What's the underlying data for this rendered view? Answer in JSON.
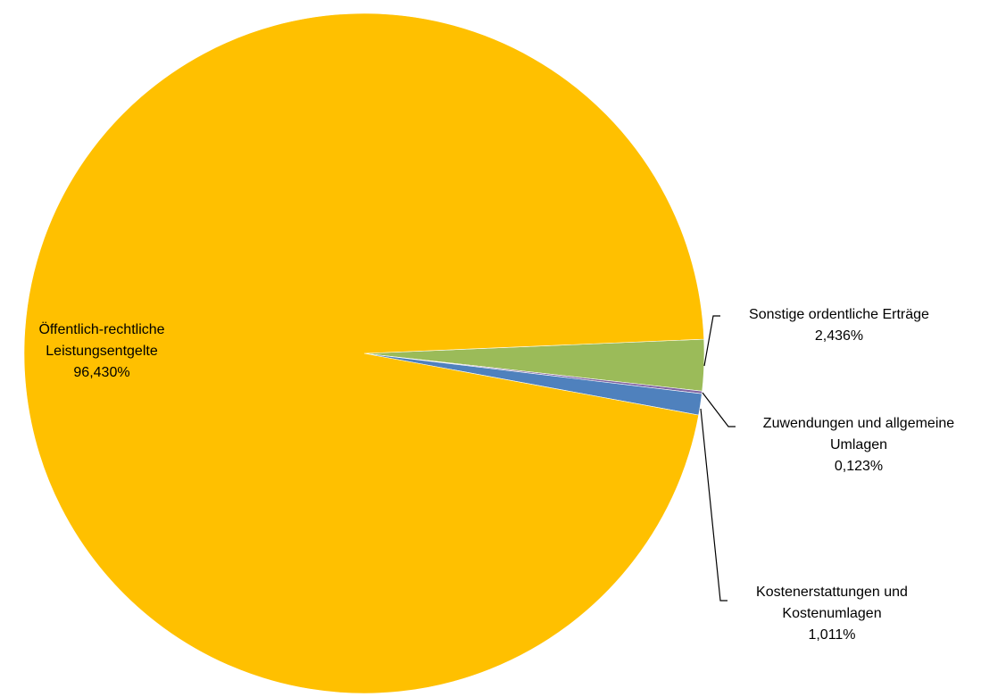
{
  "chart_data": {
    "type": "pie",
    "title": "",
    "unit": "%",
    "start_angle_deg": -2.4,
    "direction": "clockwise",
    "slices": [
      {
        "name": "Sonstige ordentliche Erträge",
        "value": 2.436,
        "label_lines": [
          "Sonstige ordentliche Erträge",
          "2,436%"
        ],
        "color": "#9BBB59"
      },
      {
        "name": "Zuwendungen und allgemeine Umlagen",
        "value": 0.123,
        "label_lines": [
          "Zuwendungen und allgemeine",
          "Umlagen",
          "0,123%"
        ],
        "color": "#8064A2"
      },
      {
        "name": "Kostenerstattungen und Kostenumlagen",
        "value": 1.011,
        "label_lines": [
          "Kostenerstattungen und",
          "Kostenumlagen",
          "1,011%"
        ],
        "color": "#4F81BD"
      },
      {
        "name": "Öffentlich-rechtliche Leistungsentgelte",
        "value": 96.43,
        "label_lines": [
          "Öffentlich-rechtliche",
          "Leistungsentgelte",
          "96,430%"
        ],
        "color": "#FFC000"
      }
    ]
  }
}
